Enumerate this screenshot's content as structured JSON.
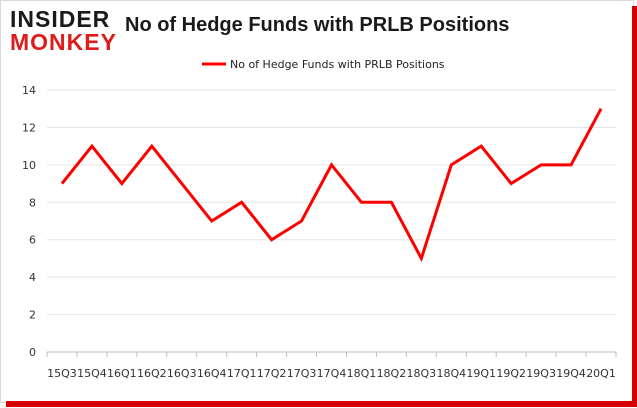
{
  "logo": {
    "line1": "INSIDER",
    "line2": "MONKEY"
  },
  "chart_data": {
    "type": "line",
    "title": "No of Hedge Funds with PRLB Positions",
    "categories": [
      "15Q3",
      "15Q4",
      "16Q1",
      "16Q2",
      "16Q3",
      "16Q4",
      "17Q1",
      "17Q2",
      "17Q3",
      "17Q4",
      "18Q1",
      "18Q2",
      "18Q3",
      "18Q4",
      "19Q1",
      "19Q2",
      "19Q3",
      "19Q4",
      "20Q1"
    ],
    "series": [
      {
        "name": "No of Hedge Funds with PRLB Positions",
        "color": "#ff0000",
        "values": [
          9,
          11,
          9,
          11,
          9,
          7,
          8,
          6,
          7,
          10,
          8,
          8,
          5,
          10,
          11,
          9,
          10,
          10,
          13
        ]
      }
    ],
    "ylim": [
      0,
      14
    ],
    "yticks": [
      0,
      2,
      4,
      6,
      8,
      10,
      12,
      14
    ],
    "grid": true,
    "legend": "top-center",
    "xlabel": "",
    "ylabel": ""
  }
}
